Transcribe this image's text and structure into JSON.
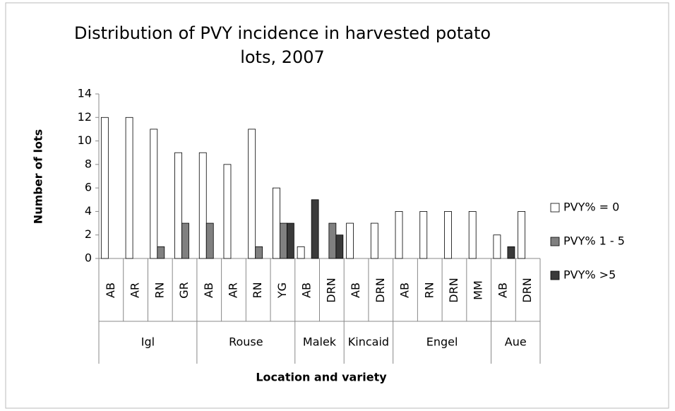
{
  "chart_data": {
    "type": "bar",
    "title": "Distribution of PVY incidence in harvested potato lots, 2007",
    "x_label": "Location and variety",
    "y_label": "Number of lots",
    "categories": [
      "AB",
      "AR",
      "RN",
      "GR",
      "AB",
      "AR",
      "RN",
      "YG",
      "AB",
      "DRN",
      "AB",
      "DRN",
      "AB",
      "RN",
      "DRN",
      "MM",
      "AB",
      "DRN"
    ],
    "groups": [
      "Igl",
      null,
      null,
      null,
      "Rouse",
      null,
      null,
      null,
      "Malek",
      null,
      "Kincaid",
      null,
      "Engel",
      null,
      null,
      null,
      "Aue",
      null
    ],
    "series": [
      {
        "name": "PVY% = 0",
        "color": "#ffffff",
        "values": [
          12,
          12,
          11,
          9,
          9,
          8,
          11,
          6,
          1,
          0,
          3,
          3,
          4,
          4,
          4,
          4,
          2,
          4
        ]
      },
      {
        "name": "PVY% 1 - 5",
        "color": "#808080",
        "values": [
          0,
          0,
          1,
          3,
          3,
          0,
          1,
          3,
          0,
          3,
          0,
          0,
          0,
          0,
          0,
          0,
          0,
          0
        ]
      },
      {
        "name": "PVY% >5",
        "color": "#3a3a3a",
        "values": [
          0,
          0,
          0,
          0,
          0,
          0,
          0,
          3,
          5,
          2,
          0,
          0,
          0,
          0,
          0,
          0,
          1,
          0
        ]
      }
    ],
    "ylim": [
      0,
      14
    ],
    "yticks": [
      0,
      2,
      4,
      6,
      8,
      10,
      12,
      14
    ],
    "grid": false,
    "legend": "right"
  }
}
